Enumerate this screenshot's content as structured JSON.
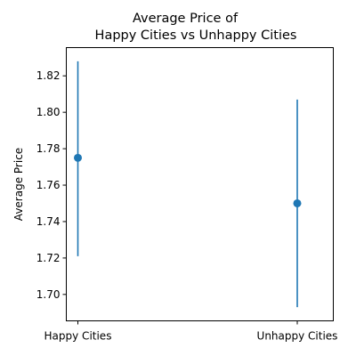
{
  "chart_data": {
    "type": "errorbar",
    "title_lines": [
      "Average Price of",
      "Happy Cities vs Unhappy Cities"
    ],
    "xlabel": "",
    "ylabel": "Average Price",
    "categories": [
      "Happy Cities",
      "Unhappy Cities"
    ],
    "series": [
      {
        "values": [
          1.775,
          1.75
        ],
        "error_lower": [
          1.721,
          1.693
        ],
        "error_upper": [
          1.828,
          1.807
        ],
        "color": "#1f77b4"
      }
    ],
    "ylim": [
      1.6855,
      1.8355
    ],
    "yticks": [
      1.7,
      1.72,
      1.74,
      1.76,
      1.78,
      1.8,
      1.82
    ],
    "ytick_labels": [
      "1.70",
      "1.72",
      "1.74",
      "1.76",
      "1.78",
      "1.80",
      "1.82"
    ],
    "grid": false,
    "legend": "none"
  }
}
